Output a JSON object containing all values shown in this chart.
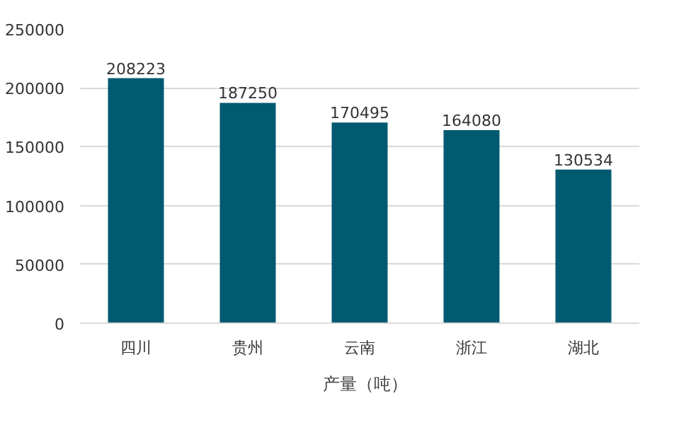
{
  "chart_data": {
    "type": "bar",
    "categories": [
      "四川",
      "贵州",
      "云南",
      "浙江",
      "湖北"
    ],
    "series": [
      {
        "name": "产量（吨）",
        "color": "#005a70",
        "values": [
          208223,
          187250,
          170495,
          164080,
          130534
        ]
      }
    ],
    "ylim": [
      0,
      250000
    ],
    "yticks": [
      0,
      50000,
      100000,
      150000,
      200000,
      250000
    ],
    "grid": "y",
    "legend": "bottom",
    "data_labels": true
  }
}
